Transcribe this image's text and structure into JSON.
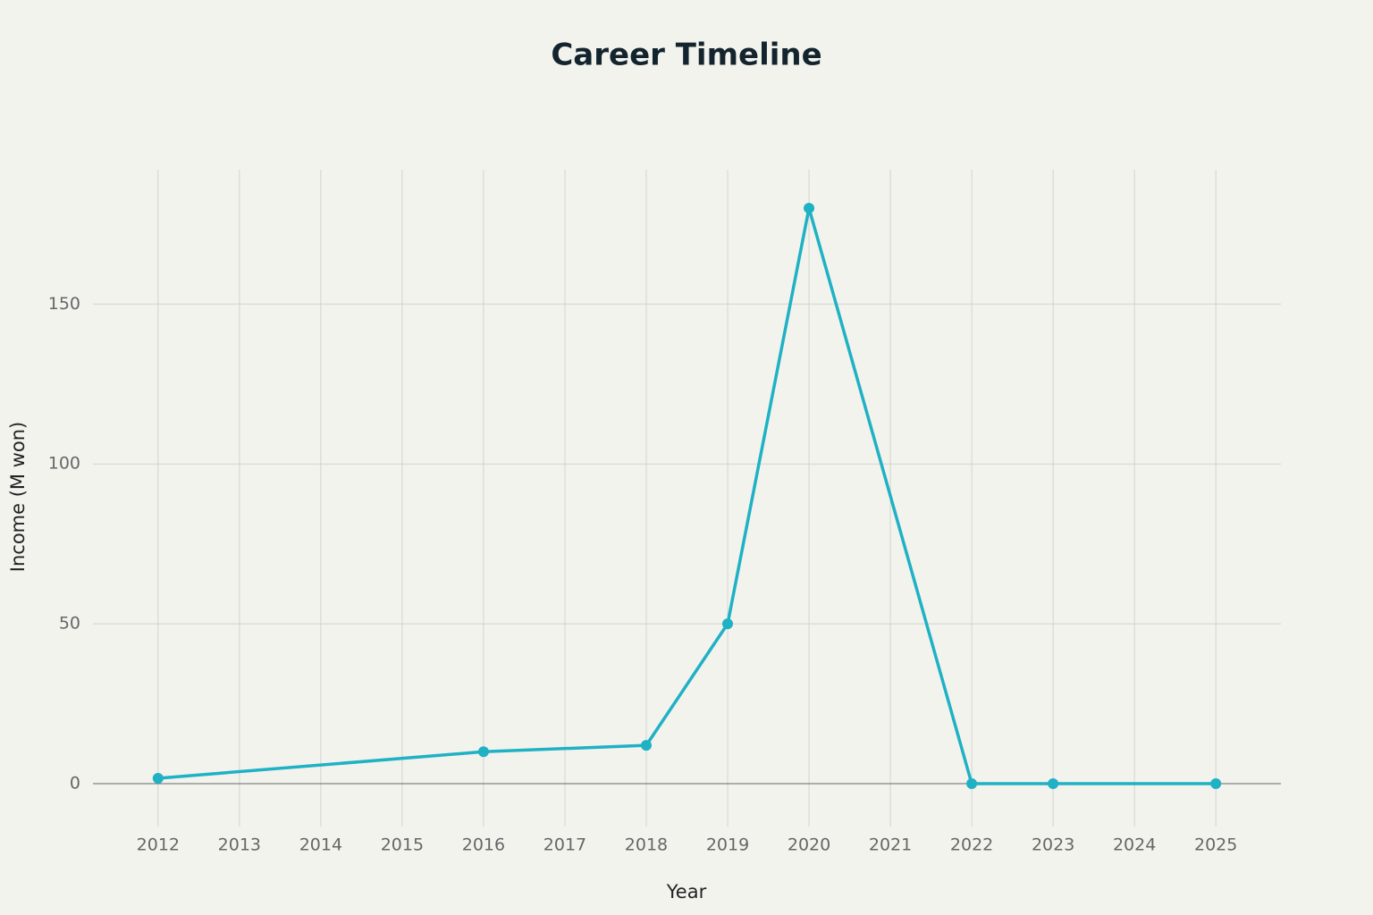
{
  "chart_data": {
    "type": "line",
    "title": "Career Timeline",
    "x_label": "Year",
    "y_label": "Income (M won)",
    "x": [
      2012,
      2016,
      2018,
      2019,
      2020,
      2022,
      2023,
      2025
    ],
    "series": [
      {
        "name": "Income",
        "color": "#1fb1c4",
        "values": [
          1.7,
          10,
          12,
          50,
          180,
          0,
          0,
          0
        ]
      }
    ],
    "xlim": [
      2011.2,
      2025.8
    ],
    "ylim": [
      -13.4,
      192
    ],
    "xticks": [
      2012,
      2013,
      2014,
      2015,
      2016,
      2017,
      2018,
      2019,
      2020,
      2021,
      2022,
      2023,
      2024,
      2025
    ],
    "yticks": [
      0,
      50,
      100,
      150
    ],
    "grid": true
  }
}
